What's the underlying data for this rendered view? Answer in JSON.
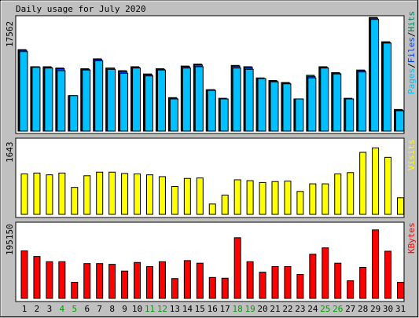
{
  "title": "Daily usage for July 2020",
  "colors": {
    "background": "#C0C0C0",
    "panel": "#FFFFFF",
    "hits": "#00805C",
    "files": "#0040FF",
    "pages": "#00C0FF",
    "visits": "#FFFF00",
    "kbytes": "#FF0000",
    "weekend_label": "#00A000",
    "weekday_label": "#000000"
  },
  "days": [
    "1",
    "2",
    "3",
    "4",
    "5",
    "6",
    "7",
    "8",
    "9",
    "10",
    "11",
    "12",
    "13",
    "14",
    "15",
    "16",
    "17",
    "18",
    "19",
    "20",
    "21",
    "22",
    "23",
    "24",
    "25",
    "26",
    "27",
    "28",
    "29",
    "30",
    "31"
  ],
  "weekend_days": [
    "4",
    "5",
    "11",
    "12",
    "18",
    "19",
    "25",
    "26"
  ],
  "chart_data": [
    {
      "type": "bar",
      "title": "Pages/Files/Hits",
      "legend": [
        "Pages",
        "/",
        "Files",
        "/",
        "Hits"
      ],
      "ylabel_max": "17562",
      "ymax": 17562,
      "series": [
        {
          "name": "Hits",
          "values": [
            12400,
            9800,
            9800,
            9600,
            5400,
            9500,
            11000,
            9600,
            9200,
            9800,
            8700,
            9500,
            5100,
            9900,
            10200,
            6300,
            5000,
            10000,
            9800,
            8100,
            7700,
            7400,
            4900,
            8500,
            9800,
            8900,
            5000,
            9300,
            17300,
            13600,
            3300
          ]
        },
        {
          "name": "Files",
          "values": [
            12300,
            9800,
            9700,
            9500,
            5400,
            9400,
            10900,
            9600,
            9100,
            9700,
            8600,
            9400,
            5000,
            9800,
            10100,
            6300,
            4900,
            9900,
            9700,
            8000,
            7600,
            7300,
            4900,
            8300,
            9700,
            8800,
            4900,
            9200,
            17200,
            13500,
            3200
          ]
        },
        {
          "name": "Pages",
          "values": [
            12100,
            9700,
            9600,
            9200,
            5400,
            9300,
            10700,
            9400,
            8800,
            9600,
            8400,
            9300,
            4900,
            9600,
            9800,
            6200,
            4900,
            9600,
            9400,
            8000,
            7500,
            7200,
            4900,
            8100,
            9600,
            8700,
            4900,
            9000,
            17000,
            13400,
            3100
          ]
        }
      ]
    },
    {
      "type": "bar",
      "title": "Visits",
      "ylabel_max": "1643",
      "ymax": 1643,
      "series": [
        {
          "name": "Visits",
          "values": [
            900,
            920,
            880,
            920,
            600,
            860,
            940,
            940,
            910,
            900,
            880,
            840,
            620,
            800,
            810,
            230,
            430,
            770,
            750,
            710,
            730,
            740,
            510,
            680,
            680,
            900,
            930,
            1380,
            1480,
            1270,
            370
          ]
        }
      ]
    },
    {
      "type": "bar",
      "title": "KBytes",
      "ylabel_max": "195150",
      "ymax": 195150,
      "series": [
        {
          "name": "KBytes",
          "values": [
            127000,
            112000,
            98000,
            98000,
            43000,
            93000,
            93000,
            91000,
            73000,
            96000,
            85000,
            98000,
            53000,
            101000,
            94000,
            56000,
            54000,
            162000,
            98000,
            70000,
            85000,
            85000,
            64000,
            118000,
            135000,
            94000,
            47000,
            83000,
            183000,
            126000,
            43000
          ]
        }
      ]
    }
  ]
}
